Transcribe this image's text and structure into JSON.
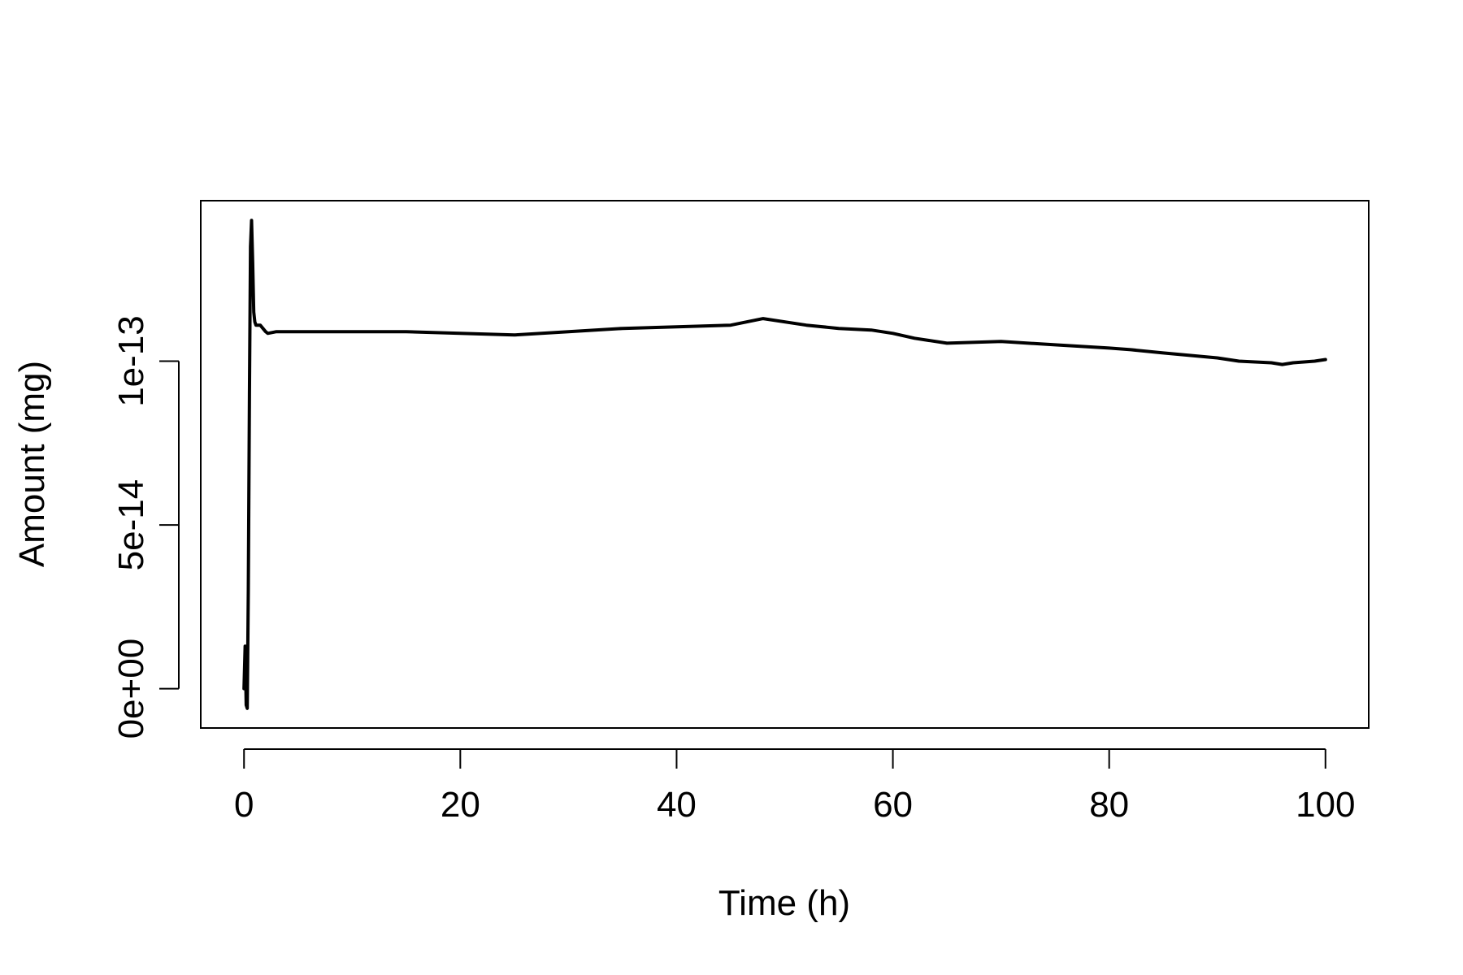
{
  "chart_data": {
    "type": "line",
    "xlabel": "Time (h)",
    "ylabel": "Amount (mg)",
    "xlim": [
      -4,
      104
    ],
    "ylim": [
      -1.2e-14,
      1.49e-13
    ],
    "x_ticks": [
      0,
      20,
      40,
      60,
      80,
      100
    ],
    "x_tick_labels": [
      "0",
      "20",
      "40",
      "60",
      "80",
      "100"
    ],
    "y_ticks": [
      0,
      5e-14,
      1e-13
    ],
    "y_tick_labels": [
      "0e+00",
      "5e-14",
      "1e-13"
    ],
    "grid": false,
    "legend": "none",
    "line_color": "#000000",
    "series": [
      {
        "x": [
          0,
          0.1,
          0.2,
          0.3,
          0.4,
          0.5,
          0.6,
          0.7,
          0.8,
          0.9,
          1.0,
          1.1,
          1.2,
          1.5,
          2,
          2.2,
          3,
          5,
          10,
          12,
          15,
          20,
          25,
          30,
          35,
          40,
          45,
          48,
          52,
          55,
          58,
          60,
          62,
          65,
          70,
          75,
          80,
          82,
          85,
          90,
          92,
          95,
          96,
          97,
          99,
          100
        ],
        "y": [
          0,
          1.3e-14,
          -5e-15,
          -6e-15,
          3e-14,
          9e-14,
          1.35e-13,
          1.43e-13,
          1.3e-13,
          1.15e-13,
          1.12e-13,
          1.11e-13,
          1.11e-13,
          1.11e-13,
          1.09e-13,
          1.085e-13,
          1.09e-13,
          1.09e-13,
          1.09e-13,
          1.09e-13,
          1.09e-13,
          1.085e-13,
          1.08e-13,
          1.09e-13,
          1.1e-13,
          1.105e-13,
          1.11e-13,
          1.13e-13,
          1.11e-13,
          1.1e-13,
          1.095e-13,
          1.085e-13,
          1.07e-13,
          1.055e-13,
          1.06e-13,
          1.05e-13,
          1.04e-13,
          1.035e-13,
          1.025e-13,
          1.01e-13,
          1e-13,
          9.95e-14,
          9.9e-14,
          9.95e-14,
          1e-13,
          1.005e-13
        ]
      }
    ]
  }
}
